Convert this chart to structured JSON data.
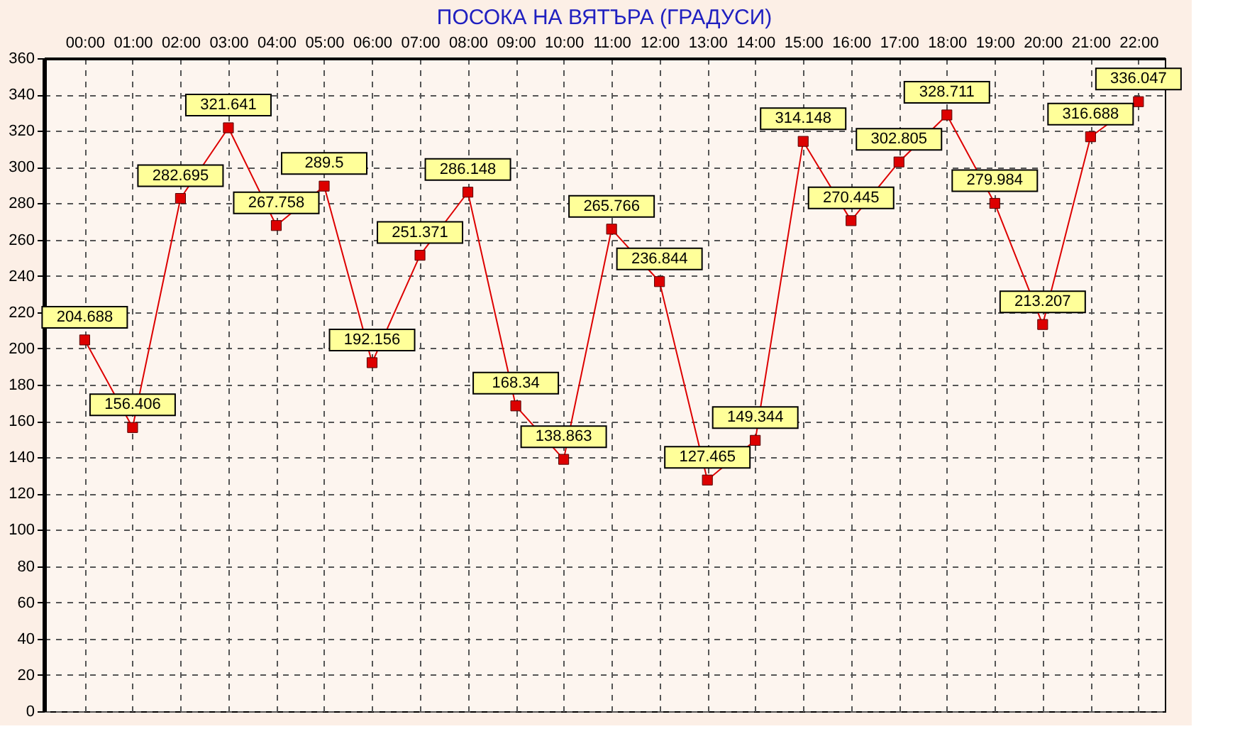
{
  "chart_data": {
    "type": "line",
    "title": "ПОСОКА НА ВЯТЪРА    (ГРАДУСИ)",
    "categories": [
      "00:00",
      "01:00",
      "02:00",
      "03:00",
      "04:00",
      "05:00",
      "06:00",
      "07:00",
      "08:00",
      "09:00",
      "10:00",
      "11:00",
      "12:00",
      "13:00",
      "14:00",
      "15:00",
      "16:00",
      "17:00",
      "18:00",
      "19:00",
      "20:00",
      "21:00",
      "22:00"
    ],
    "series": [
      {
        "color": "#dd0000",
        "values": [
          204.688,
          156.406,
          282.695,
          321.641,
          267.758,
          289.5,
          192.156,
          251.371,
          286.148,
          168.34,
          138.863,
          265.766,
          236.844,
          127.465,
          149.344,
          314.148,
          270.445,
          302.805,
          328.711,
          279.984,
          213.207,
          316.688,
          336.047
        ]
      }
    ],
    "ylim": [
      0,
      360
    ],
    "yticks": [
      0,
      20,
      40,
      60,
      80,
      100,
      120,
      140,
      160,
      180,
      200,
      220,
      240,
      260,
      280,
      300,
      320,
      340,
      360
    ],
    "grid": true,
    "marker": "square",
    "line_style": "solid",
    "data_labels": true
  }
}
